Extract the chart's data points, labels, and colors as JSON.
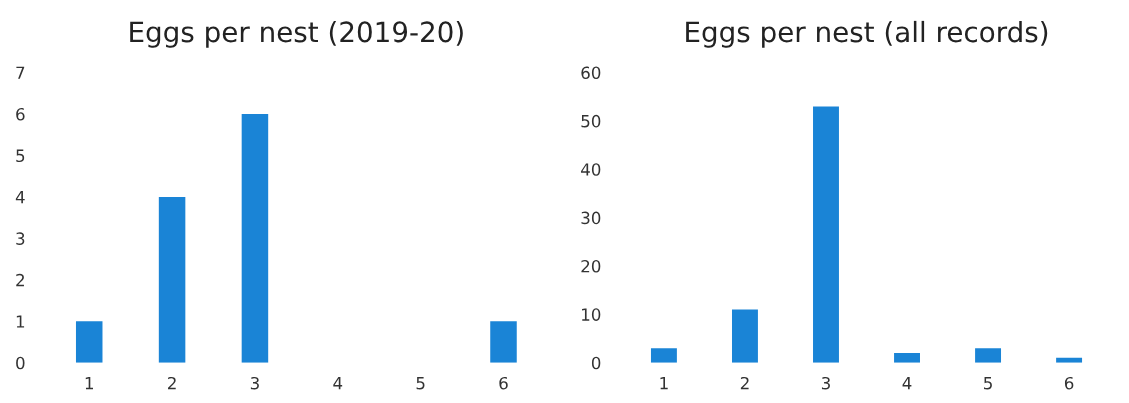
{
  "chart_data": [
    {
      "type": "bar",
      "title": "Eggs per nest (2019-20)",
      "categories": [
        "1",
        "2",
        "3",
        "4",
        "5",
        "6"
      ],
      "values": [
        1,
        4,
        6,
        0,
        0,
        1
      ],
      "color": "#1a84d6",
      "ylim": [
        0,
        7
      ],
      "yticks": [
        0,
        1,
        2,
        3,
        4,
        5,
        6,
        7
      ],
      "grid": false
    },
    {
      "type": "bar",
      "title": "Eggs per nest (all records)",
      "categories": [
        "1",
        "2",
        "3",
        "4",
        "5",
        "6"
      ],
      "values": [
        3,
        11,
        53,
        2,
        3,
        1
      ],
      "color": "#1a84d6",
      "ylim": [
        0,
        60
      ],
      "yticks": [
        0,
        10,
        20,
        30,
        40,
        50,
        60
      ],
      "grid": false
    }
  ]
}
